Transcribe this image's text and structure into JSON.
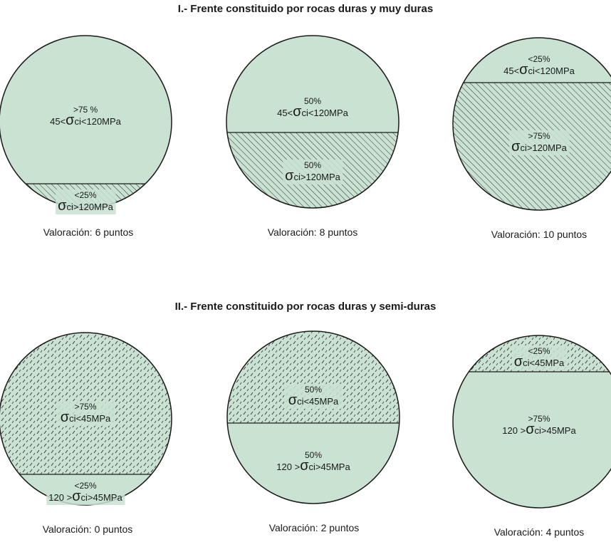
{
  "colors": {
    "fill": "#c9e2d2",
    "outline": "#1a1a1a",
    "hatch": "#2f2f2f",
    "label_bg": "#c9e2d2"
  },
  "sections": [
    {
      "title": "I.- Frente constituido por rocas duras y muy duras",
      "circles": [
        {
          "caption": "Valoración: 6 puntos",
          "top": {
            "pct": ">75 %",
            "formula": [
              "45<",
              "σ",
              "ci<120MPa"
            ]
          },
          "bottom": {
            "pct": "<25%",
            "formula": [
              "",
              "σ",
              "ci>120MPa"
            ]
          }
        },
        {
          "caption": "Valoración: 8 puntos",
          "top": {
            "pct": "50%",
            "formula": [
              "45<",
              "σ",
              "ci<120MPa"
            ]
          },
          "bottom": {
            "pct": "50%",
            "formula": [
              "",
              "σ",
              "ci>120MPa"
            ]
          }
        },
        {
          "caption": "Valoración: 10 puntos",
          "top": {
            "pct": "<25%",
            "formula": [
              "45<",
              "σ",
              "ci<120MPa"
            ]
          },
          "bottom": {
            "pct": ">75%",
            "formula": [
              "",
              "σ",
              "ci>120MPa"
            ]
          }
        }
      ]
    },
    {
      "title": "II.- Frente constituido por rocas duras y semi-duras",
      "circles": [
        {
          "caption": "Valoración: 0 puntos",
          "top": {
            "pct": ">75%",
            "formula": [
              "",
              "σ",
              "ci<45MPa"
            ]
          },
          "bottom": {
            "pct": "<25%",
            "formula": [
              "120 >",
              "σ",
              "ci>45MPa"
            ]
          }
        },
        {
          "caption": "Valoración: 2 puntos",
          "top": {
            "pct": "50%",
            "formula": [
              "",
              "σ",
              "ci<45MPa"
            ]
          },
          "bottom": {
            "pct": "50%",
            "formula": [
              "120 >",
              "σ",
              "ci>45MPa"
            ]
          }
        },
        {
          "caption": "Valoración: 4 puntos",
          "top": {
            "pct": "<25%",
            "formula": [
              "",
              "σ",
              "ci<45MPa"
            ]
          },
          "bottom": {
            "pct": ">75%",
            "formula": [
              "120 >",
              "σ",
              "ci>45MPa"
            ]
          }
        }
      ]
    }
  ]
}
